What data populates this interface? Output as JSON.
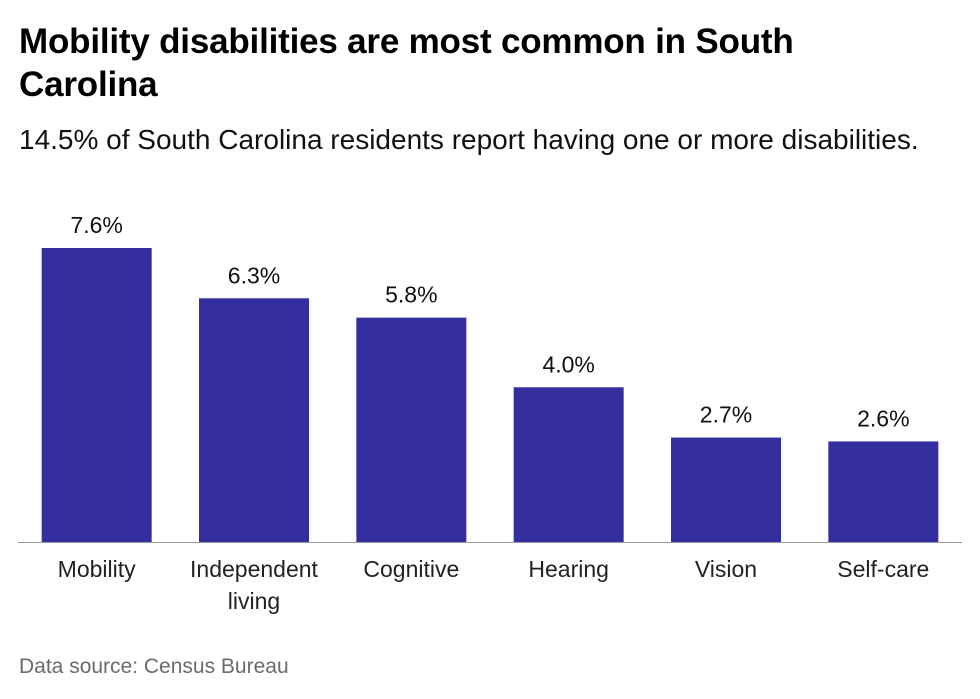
{
  "chart_data": {
    "type": "bar",
    "title": "Mobility disabilities are most common in South Carolina",
    "subtitle": "14.5% of South Carolina residents report having one or more disabilities.",
    "categories": [
      "Mobility",
      "Independent living",
      "Cognitive",
      "Hearing",
      "Vision",
      "Self-care"
    ],
    "category_lines": [
      [
        "Mobility"
      ],
      [
        "Independent",
        "living"
      ],
      [
        "Cognitive"
      ],
      [
        "Hearing"
      ],
      [
        "Vision"
      ],
      [
        "Self-care"
      ]
    ],
    "values": [
      7.6,
      6.3,
      5.8,
      4.0,
      2.7,
      2.6
    ],
    "value_labels": [
      "7.6%",
      "6.3%",
      "5.8%",
      "4.0%",
      "2.7%",
      "2.6%"
    ],
    "ylim": [
      0,
      7.6
    ],
    "xlabel": "",
    "ylabel": "",
    "grid": false,
    "legend": "none",
    "bar_color": "#342e9f",
    "axis_color": "#999999",
    "source": "Data source: Census Bureau"
  }
}
